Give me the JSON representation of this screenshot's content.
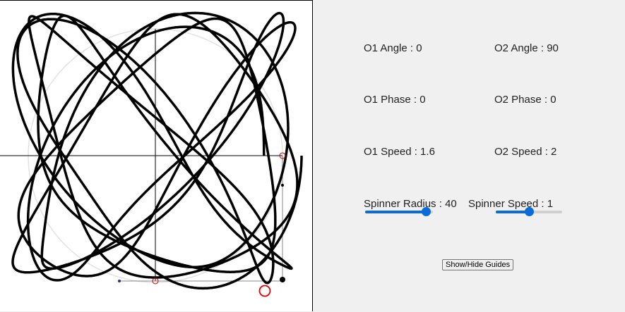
{
  "controls": {
    "o1_angle": "O1 Angle : 0",
    "o2_angle": "O2 Angle : 90",
    "o1_phase": "O1 Phase : 0",
    "o2_phase": "O2 Phase : 0",
    "o1_speed": "O1 Speed : 1.6",
    "o2_speed": "O2 Speed : 2",
    "spinner_radius": "Spinner Radius : 40",
    "spinner_speed": "Spinner Speed : 1",
    "spinner_radius_fraction": 0.9,
    "spinner_speed_fraction": 0.5,
    "guides_button": "Show/Hide Guides"
  },
  "colors": {
    "accent": "#0b6bd8",
    "guide_marker": "#cc0000",
    "curve": "#000000"
  }
}
